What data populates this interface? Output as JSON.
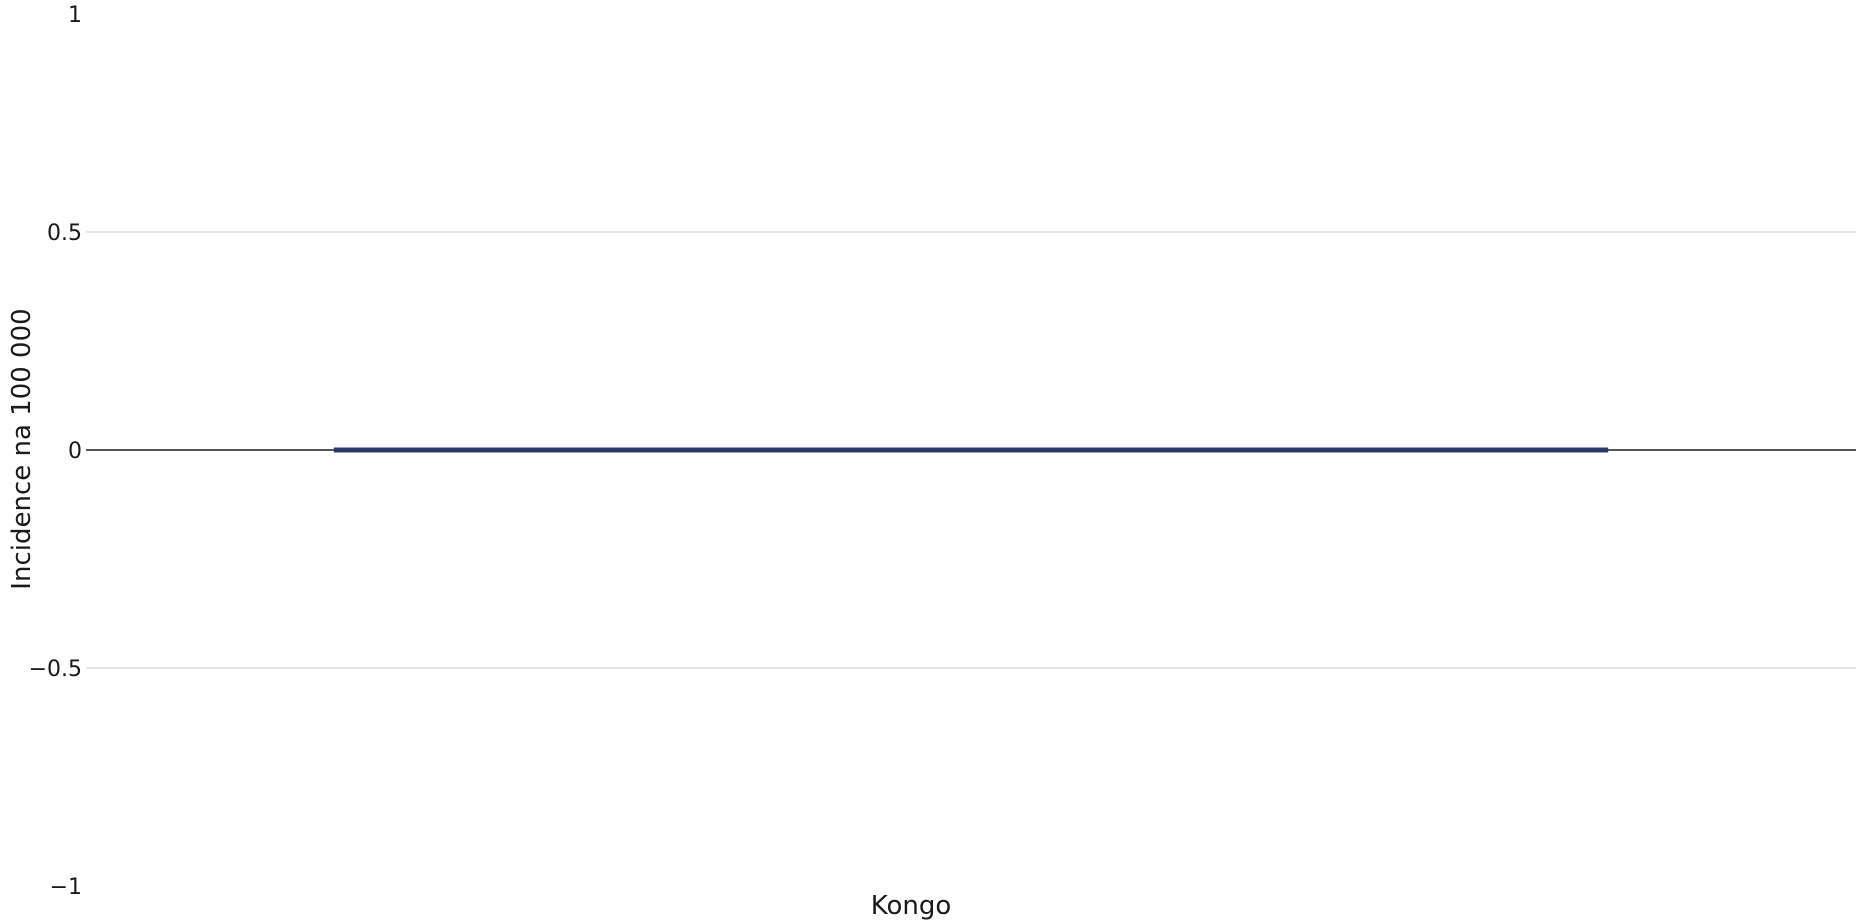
{
  "colors": {
    "bar": "#2b3a67",
    "zero_line": "#555555",
    "grid": "#e6e6e6",
    "text": "#1a1a1a",
    "background": "#ffffff"
  },
  "chart_data": {
    "type": "bar",
    "title": "",
    "xlabel": "",
    "ylabel": "Incidence na 100 000",
    "categories": [
      "Kongo"
    ],
    "series": [
      {
        "values": [
          0
        ]
      }
    ],
    "ylim": [
      -1,
      1
    ],
    "yticks": [
      1,
      0.5,
      0,
      -0.5,
      -1
    ],
    "ytick_labels": [
      "1",
      "0.5",
      "0",
      "−0.5",
      "−1"
    ],
    "grid": true,
    "legend": "none"
  }
}
